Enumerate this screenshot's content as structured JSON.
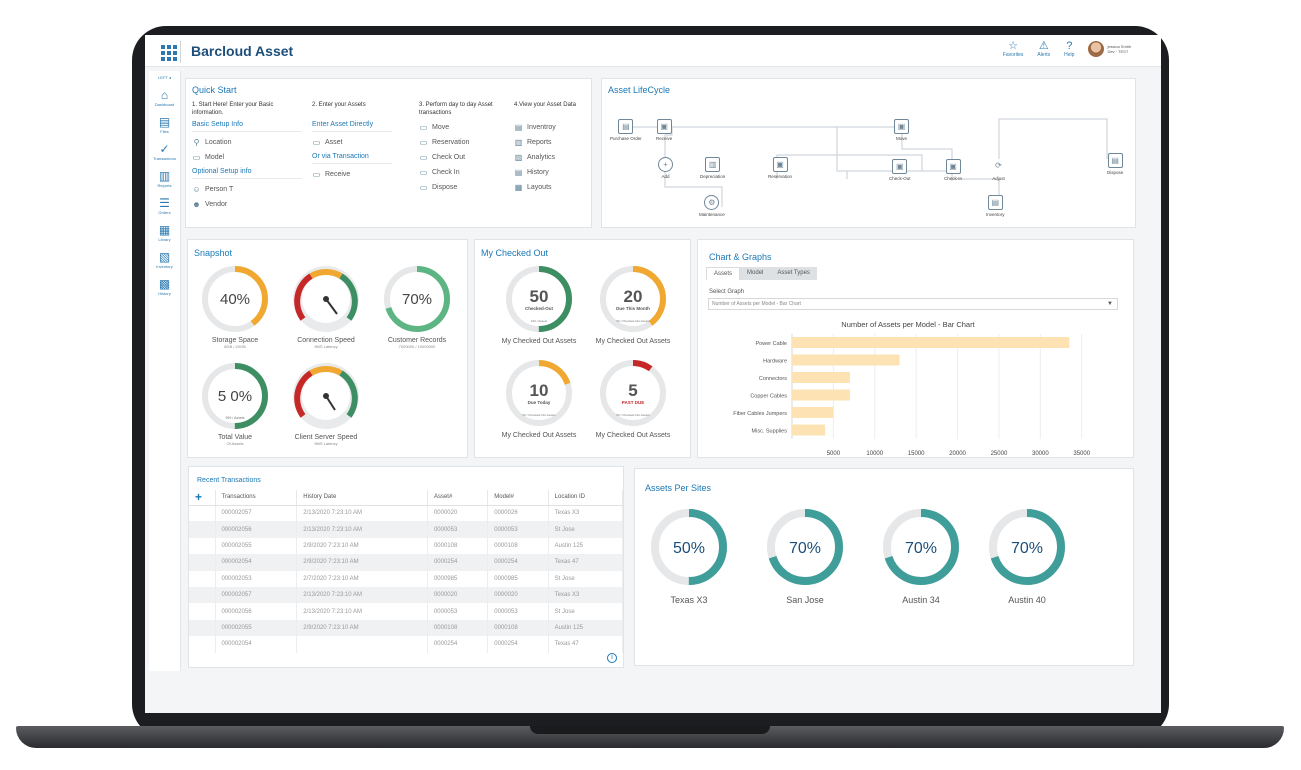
{
  "app": {
    "title": "Barcloud Asset"
  },
  "header": {
    "icons": [
      {
        "name": "favorites",
        "label": "Favorites",
        "glyph": "☆"
      },
      {
        "name": "alerts",
        "label": "Alerts",
        "glyph": "⚠"
      },
      {
        "name": "help",
        "label": "Help",
        "glyph": "?"
      }
    ],
    "user": {
      "name": "jessica Smith",
      "role": "Dev · TEST"
    }
  },
  "sidebar": {
    "collapse_label": "LEFT ◂",
    "items": [
      {
        "label": "Dashboard",
        "glyph": "⌂"
      },
      {
        "label": "Files",
        "glyph": "▤"
      },
      {
        "label": "Transactions",
        "glyph": "✓"
      },
      {
        "label": "Reports",
        "glyph": "▥"
      },
      {
        "label": "Orders",
        "glyph": "☰"
      },
      {
        "label": "Library",
        "glyph": "▦"
      },
      {
        "label": "Inventory",
        "glyph": "▧"
      },
      {
        "label": "History",
        "glyph": "▩"
      }
    ]
  },
  "quick_start": {
    "title": "Quick Start",
    "col1": {
      "step": "1. Start Here! Enter your Basic information.",
      "link1": "Basic Setup Info",
      "items1": [
        {
          "label": "Location",
          "glyph": "⚲"
        },
        {
          "label": "Model",
          "glyph": "▭"
        }
      ],
      "link2": "Optional Setup info",
      "items2": [
        {
          "label": "Person T",
          "glyph": "☺"
        },
        {
          "label": "Vendor",
          "glyph": "☻"
        }
      ]
    },
    "col2": {
      "step": "2. Enter your Assets",
      "link1": "Enter Asset Directly",
      "items1": [
        {
          "label": "Asset",
          "glyph": "▭"
        }
      ],
      "link2": "Or via Transaction",
      "items2": [
        {
          "label": "Receive",
          "glyph": "▭"
        }
      ]
    },
    "col3": {
      "step": "3. Perform day to day Asset transactions",
      "items": [
        {
          "label": "Move",
          "glyph": "▭"
        },
        {
          "label": "Reservation",
          "glyph": "▭"
        },
        {
          "label": "Check Out",
          "glyph": "▭"
        },
        {
          "label": "Check In",
          "glyph": "▭"
        },
        {
          "label": "Dispose",
          "glyph": "▭"
        }
      ]
    },
    "col4": {
      "step": "4.View your Asset Data",
      "items": [
        {
          "label": "Inventroy",
          "glyph": "▤"
        },
        {
          "label": "Reports",
          "glyph": "▥"
        },
        {
          "label": "Analytics",
          "glyph": "▨"
        },
        {
          "label": "History",
          "glyph": "▤"
        },
        {
          "label": "Layouts",
          "glyph": "▦"
        }
      ]
    }
  },
  "lifecycle": {
    "title": "Asset LifeCycle",
    "nodes": {
      "purchase": "Purchase Order",
      "receive": "Receive",
      "add": "Add",
      "depreciation": "Depreciation",
      "maintenance": "Maintenance",
      "reservation": "Reservation",
      "move": "Move",
      "checkout": "Check-Out",
      "checkin": "Check-In",
      "adjust": "Adjust",
      "inventory": "Inventory",
      "dispose": "Dispose"
    }
  },
  "snapshot": {
    "title": "Snapshot",
    "storage": {
      "value": "40%",
      "pct": 0.4,
      "label": "Storage Space",
      "sub": "8GB / 20GB",
      "color": "#f0a830"
    },
    "connection": {
      "label": "Connection Speed",
      "sub": "9MS Latency"
    },
    "customer": {
      "value": "70%",
      "pct": 0.7,
      "label": "Customer Records",
      "sub": "7000000 / 10000000",
      "color": "#5db583"
    },
    "total": {
      "value": "5 0%",
      "pct": 0.5,
      "label": "Total Value",
      "sub": "Of Assets",
      "inner": "999 / Assets",
      "color": "#3e8e63"
    },
    "server": {
      "label": "Client Server Speed",
      "sub": "9MS Latency"
    }
  },
  "checked_out": {
    "title": "My Checked Out",
    "items": [
      {
        "value": "50",
        "inner": "Checked-Out",
        "small": "100 / Assets",
        "pct": 0.5,
        "label": "My Checked Out Assets",
        "color": "#3e8e63"
      },
      {
        "value": "20",
        "inner": "Due This Month",
        "small": "50 / Checked-Out Assets",
        "pct": 0.4,
        "label": "My Checked Out Assets",
        "color": "#f0a830"
      },
      {
        "value": "10",
        "inner": "Due Today",
        "small": "50 / Checked-Out Assets",
        "pct": 0.2,
        "label": "My Checked Out Assets",
        "color": "#f0a830"
      },
      {
        "value": "5",
        "inner": "PAST DUE",
        "small": "50 / Checked-Out Assets",
        "pct": 0.1,
        "label": "My Checked Out Assets",
        "color": "#c62828"
      }
    ]
  },
  "charts": {
    "title": "Chart & Graphs",
    "tabs": [
      "Assets",
      "Model",
      "Asset Types"
    ],
    "select_label": "Select Graph",
    "select_value": "Number of Assets per Model - Bar Chart"
  },
  "chart_data": {
    "type": "bar",
    "orientation": "horizontal",
    "title": "Number of Assets per Model - Bar Chart",
    "categories": [
      "Power Cable",
      "Hardware",
      "Connectors",
      "Copper Cables",
      "Fiber Cables Jumpers",
      "Misc. Supplies"
    ],
    "values": [
      33500,
      13000,
      7000,
      7000,
      5000,
      4000
    ],
    "xticks": [
      "5000",
      "10000",
      "15000",
      "20000",
      "25000",
      "30000",
      "35000"
    ],
    "xlim": [
      0,
      36000
    ],
    "grid": true,
    "color": "#fde3b3"
  },
  "transactions": {
    "title": "Recent Transactions",
    "add_icon": "+",
    "columns": [
      "Transactions",
      "History Date",
      "Asset#",
      "Model#",
      "Location ID"
    ],
    "rows": [
      [
        "000002057",
        "2/13/2020 7:23:10 AM",
        "0000020",
        "0000026",
        "Texas X3"
      ],
      [
        "000002056",
        "2/13/2020 7:23:10 AM",
        "0000053",
        "0000053",
        "St Jose"
      ],
      [
        "000002055",
        "2/9/2020 7:23:10 AM",
        "0000108",
        "0000108",
        "Austin 125"
      ],
      [
        "000002054",
        "2/9/2020 7:23:10 AM",
        "0000254",
        "0000254",
        "Texas 47"
      ],
      [
        "000002053",
        "2/7/2020 7:23:10 AM",
        "0000985",
        "0000985",
        "St Jose"
      ],
      [
        "000002057",
        "2/13/2020 7:23:10 AM",
        "0000020",
        "0000020",
        "Texas X3"
      ],
      [
        "000002056",
        "2/13/2020 7:23:10 AM",
        "0000053",
        "0000053",
        "St Jose"
      ],
      [
        "000002055",
        "2/9/2020 7:23:10 AM",
        "0000108",
        "0000108",
        "Austin 125"
      ],
      [
        "000002054",
        "",
        "0000254",
        "0000254",
        "Texas 47"
      ]
    ]
  },
  "sites": {
    "title": "Assets Per Sites",
    "items": [
      {
        "value": "50%",
        "pct": 0.5,
        "label": "Texas X3"
      },
      {
        "value": "70%",
        "pct": 0.7,
        "label": "San Jose"
      },
      {
        "value": "70%",
        "pct": 0.7,
        "label": "Austin 34"
      },
      {
        "value": "70%",
        "pct": 0.7,
        "label": "Austin 40"
      }
    ],
    "color": "#3f9d9a"
  }
}
